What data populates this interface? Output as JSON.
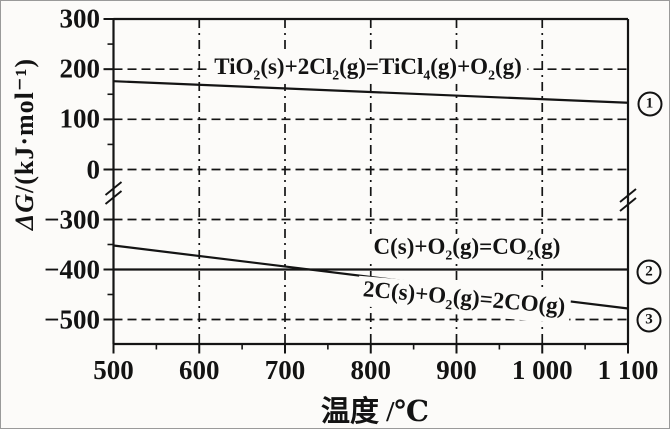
{
  "figure": {
    "y_axis_title": {
      "delta": "Δ",
      "symbol": "G",
      "unit": "/(kJ·mol⁻¹)"
    },
    "x_axis_title": "温度 /℃",
    "y_ticks_top": [
      "300",
      "200",
      "100",
      "0"
    ],
    "y_ticks_bottom": [
      "−300",
      "−400",
      "−500"
    ],
    "x_ticks": [
      "500",
      "600",
      "700",
      "800",
      "900",
      "1 000",
      "1 100"
    ],
    "badges": [
      "1",
      "2",
      "3"
    ]
  },
  "chart_data": {
    "type": "line",
    "title": "",
    "xlabel": "温度 /℃",
    "ylabel": "ΔG/(kJ·mol⁻¹)",
    "x_range": [
      500,
      1100
    ],
    "x_tick_values": [
      500,
      600,
      700,
      800,
      900,
      1000,
      1100
    ],
    "x_minor_step": 50,
    "y_axis_break_between": [
      0,
      -300
    ],
    "y_ticks_top": [
      300,
      200,
      100,
      0
    ],
    "y_ticks_bottom": [
      -300,
      -400,
      -500
    ],
    "y_minor_step": 50,
    "ylim_top": [
      0,
      300
    ],
    "ylim_bottom": [
      -500,
      -300
    ],
    "grid": "dashed",
    "legend_position": "on-line-labels",
    "series": [
      {
        "id": "1",
        "name": "TiO₂(s)+2Cl₂(g)=TiCl₄(g)+O₂(g)",
        "label_text": "TiO_2(s)+2Cl_2(g)=TiCl_4(g)+O_2(g)",
        "x": [
          500,
          1100
        ],
        "y": [
          176,
          133
        ]
      },
      {
        "id": "2",
        "name": "C(s)+O₂(g)=CO₂(g)",
        "label_text": "C(s)+O_2(g)=CO_2(g)",
        "x": [
          500,
          1100
        ],
        "y": [
          -400,
          -400
        ]
      },
      {
        "id": "3",
        "name": "2C(s)+O₂(g)=2CO(g)",
        "label_text": "2C(s)+O_2(g)=2CO(g)",
        "x": [
          500,
          1100
        ],
        "y": [
          -352,
          -478
        ]
      }
    ]
  }
}
